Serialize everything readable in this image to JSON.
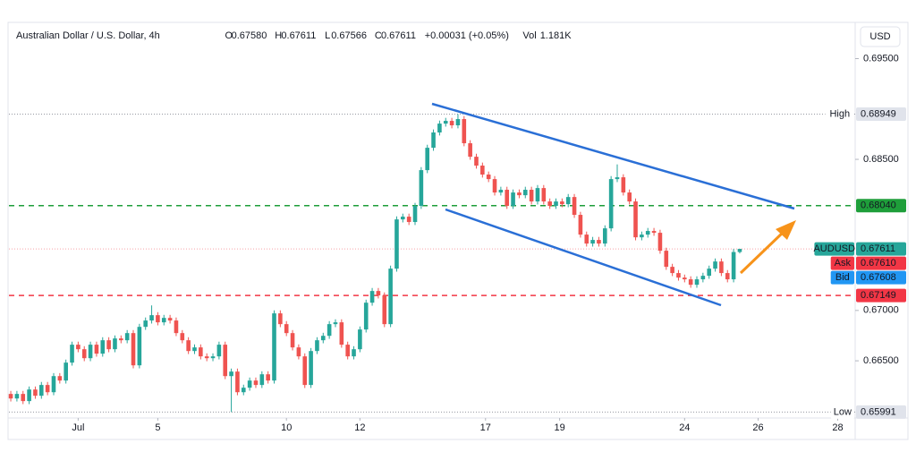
{
  "chart_data": {
    "type": "candlestick",
    "header": {
      "title": "Australian Dollar / U.S. Dollar, 4h",
      "fields": [
        {
          "key": "O",
          "text": "0.67580"
        },
        {
          "key": "H",
          "text": "0.67611"
        },
        {
          "key": "L",
          "text": "0.67566"
        },
        {
          "key": "C",
          "text": "0.67611"
        },
        {
          "key": "",
          "text": "+0.00031 (+0.05%)"
        },
        {
          "key": "Vol",
          "text": "1.181K"
        }
      ]
    },
    "currency_button": "USD",
    "up_color": "#26a69a",
    "down_color": "#ef5350",
    "grid": false,
    "ylim": [
      0.6595,
      0.6986
    ],
    "yticks": [
      {
        "value": 0.695,
        "label": "0.69500"
      },
      {
        "value": 0.685,
        "label": "0.68500"
      },
      {
        "value": 0.67,
        "label": "0.67000"
      },
      {
        "value": 0.665,
        "label": "0.66500"
      }
    ],
    "xlim": [
      -0.3,
      137.7
    ],
    "xticks": [
      {
        "value": 11,
        "label": "Jul"
      },
      {
        "value": 24,
        "label": "5"
      },
      {
        "value": 45,
        "label": "10"
      },
      {
        "value": 57,
        "label": "12"
      },
      {
        "value": 77.5,
        "label": "17"
      },
      {
        "value": 89.6,
        "label": "19"
      },
      {
        "value": 110,
        "label": "24"
      },
      {
        "value": 122,
        "label": "26"
      },
      {
        "value": 135,
        "label": "28"
      }
    ],
    "open": [
      0.66171,
      0.66126,
      0.66171,
      0.661,
      0.66215,
      0.66153,
      0.6626,
      0.66188,
      0.66348,
      0.66304,
      0.66482,
      0.6666,
      0.66615,
      0.66526,
      0.6666,
      0.66571,
      0.66704,
      0.66615,
      0.66722,
      0.66704,
      0.66775,
      0.66455,
      0.66837,
      0.669,
      0.66953,
      0.66882,
      0.66926,
      0.669,
      0.66775,
      0.66704,
      0.66597,
      0.66633,
      0.66544,
      0.66526,
      0.66544,
      0.6666,
      0.66348,
      0.66393,
      0.66188,
      0.66233,
      0.66304,
      0.6626,
      0.66366,
      0.66304,
      0.66971,
      0.66864,
      0.66775,
      0.66633,
      0.66544,
      0.6626,
      0.66597,
      0.66704,
      0.66748,
      0.66864,
      0.66882,
      0.6666,
      0.66544,
      0.66615,
      0.66811,
      0.67077,
      0.67193,
      0.67149,
      0.66864,
      0.67415,
      0.67904,
      0.67931,
      0.67878,
      0.68038,
      0.68393,
      0.68615,
      0.68767,
      0.68855,
      0.68882,
      0.68838,
      0.689,
      0.6866,
      0.68526,
      0.68438,
      0.68349,
      0.68304,
      0.68171,
      0.68198,
      0.68038,
      0.68171,
      0.68144,
      0.68198,
      0.68082,
      0.68215,
      0.68082,
      0.68038,
      0.68082,
      0.68055,
      0.68126,
      0.67949,
      0.67753,
      0.67664,
      0.677,
      0.67664,
      0.67815,
      0.68304,
      0.68322,
      0.68171,
      0.68082,
      0.67726,
      0.67753,
      0.67789,
      0.67771,
      0.67593,
      0.67433,
      0.67371,
      0.67326,
      0.67309,
      0.67255,
      0.67309,
      0.67344,
      0.67415,
      0.67486,
      0.67371,
      0.67309,
      0.6758
    ],
    "high": [
      0.66201,
      0.66201,
      0.66201,
      0.66245,
      0.66245,
      0.6629,
      0.6629,
      0.66378,
      0.66378,
      0.66512,
      0.6669,
      0.6669,
      0.66645,
      0.6669,
      0.6669,
      0.66734,
      0.66734,
      0.66752,
      0.66752,
      0.66805,
      0.66805,
      0.66867,
      0.6693,
      0.6705,
      0.66983,
      0.66956,
      0.66956,
      0.6693,
      0.66805,
      0.66734,
      0.66663,
      0.66663,
      0.66574,
      0.66574,
      0.6669,
      0.6669,
      0.66423,
      0.66423,
      0.66263,
      0.66334,
      0.66334,
      0.66396,
      0.66396,
      0.67001,
      0.67001,
      0.66894,
      0.66805,
      0.66663,
      0.66574,
      0.66627,
      0.66734,
      0.66778,
      0.66894,
      0.66912,
      0.66912,
      0.6669,
      0.66645,
      0.66841,
      0.67107,
      0.67223,
      0.67223,
      0.67179,
      0.67445,
      0.67934,
      0.67961,
      0.67961,
      0.68068,
      0.68423,
      0.68645,
      0.68797,
      0.68885,
      0.68912,
      0.68912,
      0.68949,
      0.6893,
      0.6869,
      0.68556,
      0.68468,
      0.68379,
      0.68334,
      0.68228,
      0.68228,
      0.68201,
      0.68201,
      0.68228,
      0.68228,
      0.68245,
      0.68245,
      0.68112,
      0.68112,
      0.68112,
      0.68156,
      0.68156,
      0.67979,
      0.67783,
      0.6773,
      0.6773,
      0.67845,
      0.68334,
      0.6845,
      0.68352,
      0.68201,
      0.68112,
      0.67783,
      0.67819,
      0.67819,
      0.67801,
      0.67623,
      0.67463,
      0.67401,
      0.67356,
      0.67339,
      0.67339,
      0.67374,
      0.67445,
      0.67516,
      0.67516,
      0.67401,
      0.6761,
      0.67611
    ],
    "low": [
      0.66096,
      0.66096,
      0.6607,
      0.6607,
      0.66123,
      0.66123,
      0.66158,
      0.66158,
      0.66274,
      0.66274,
      0.66452,
      0.66585,
      0.66496,
      0.66496,
      0.66541,
      0.66541,
      0.66585,
      0.66585,
      0.66674,
      0.66674,
      0.66425,
      0.66425,
      0.66807,
      0.6687,
      0.66852,
      0.66852,
      0.6687,
      0.66745,
      0.66674,
      0.66567,
      0.66567,
      0.66514,
      0.66496,
      0.66496,
      0.66514,
      0.66318,
      0.65991,
      0.66158,
      0.66158,
      0.66203,
      0.6623,
      0.6623,
      0.66274,
      0.66274,
      0.66834,
      0.66745,
      0.66603,
      0.66514,
      0.6623,
      0.6623,
      0.66567,
      0.66674,
      0.66718,
      0.66834,
      0.6663,
      0.66514,
      0.66514,
      0.66585,
      0.66781,
      0.67047,
      0.67119,
      0.66834,
      0.66834,
      0.67385,
      0.67874,
      0.67848,
      0.67848,
      0.68008,
      0.68363,
      0.68585,
      0.68737,
      0.68825,
      0.68808,
      0.68808,
      0.6863,
      0.68496,
      0.68408,
      0.68319,
      0.68274,
      0.68141,
      0.68141,
      0.68008,
      0.68008,
      0.68114,
      0.68114,
      0.68052,
      0.68052,
      0.68052,
      0.68008,
      0.68008,
      0.68025,
      0.68025,
      0.67919,
      0.67723,
      0.67634,
      0.67634,
      0.67634,
      0.67634,
      0.67785,
      0.68274,
      0.68141,
      0.68052,
      0.67696,
      0.67696,
      0.67723,
      0.67741,
      0.67563,
      0.67403,
      0.67341,
      0.67296,
      0.67279,
      0.67225,
      0.67225,
      0.67279,
      0.67314,
      0.67385,
      0.67341,
      0.67279,
      0.67279,
      0.67566
    ],
    "close": [
      0.66126,
      0.66171,
      0.661,
      0.66215,
      0.66153,
      0.6626,
      0.66188,
      0.66348,
      0.66304,
      0.66482,
      0.6666,
      0.66615,
      0.66526,
      0.6666,
      0.66571,
      0.66704,
      0.66615,
      0.66722,
      0.66704,
      0.66775,
      0.66455,
      0.66837,
      0.669,
      0.66953,
      0.66882,
      0.66926,
      0.669,
      0.66775,
      0.66704,
      0.66597,
      0.66633,
      0.66544,
      0.66526,
      0.66544,
      0.6666,
      0.66348,
      0.66393,
      0.66188,
      0.66233,
      0.66304,
      0.6626,
      0.66366,
      0.66304,
      0.66971,
      0.66864,
      0.66775,
      0.66633,
      0.66544,
      0.6626,
      0.66597,
      0.66704,
      0.66748,
      0.66864,
      0.66882,
      0.6666,
      0.66544,
      0.66615,
      0.66811,
      0.67077,
      0.67193,
      0.67149,
      0.66864,
      0.67415,
      0.67904,
      0.67931,
      0.67878,
      0.68038,
      0.68393,
      0.68615,
      0.68767,
      0.68855,
      0.68882,
      0.68838,
      0.689,
      0.6866,
      0.68526,
      0.68438,
      0.68349,
      0.68304,
      0.68171,
      0.68198,
      0.68038,
      0.68171,
      0.68144,
      0.68198,
      0.68082,
      0.68215,
      0.68082,
      0.68038,
      0.68082,
      0.68055,
      0.68126,
      0.67949,
      0.67753,
      0.67664,
      0.677,
      0.67664,
      0.67815,
      0.68304,
      0.68322,
      0.68171,
      0.68082,
      0.67726,
      0.67753,
      0.67789,
      0.67771,
      0.67593,
      0.67433,
      0.67371,
      0.67326,
      0.67309,
      0.67255,
      0.67309,
      0.67344,
      0.67415,
      0.67486,
      0.67371,
      0.67309,
      0.6758,
      0.67611
    ],
    "levels": [
      {
        "name": "High",
        "value": 0.68949,
        "label": "0.68949",
        "color": "#e0e3eb",
        "text_color": "#131722",
        "line": "dotted-gray"
      },
      {
        "value": 0.6804,
        "label": "0.68040",
        "color": "#1e9e3a",
        "text_color": "#ffffff",
        "line": "dashed-green"
      },
      {
        "name": "AUDUSD",
        "value": 0.67611,
        "label": "0.67611",
        "color": "#26a69a",
        "text_color": "#ffffff",
        "line": "dotted-red"
      },
      {
        "name": "Ask",
        "value": 0.6761,
        "label": "0.67610",
        "color": "#f23645",
        "text_color": "#ffffff",
        "line": "none"
      },
      {
        "name": "Bid",
        "value": 0.67608,
        "label": "0.67608",
        "color": "#2196f3",
        "text_color": "#ffffff",
        "line": "none"
      },
      {
        "value": 0.67149,
        "label": "0.67149",
        "color": "#f23645",
        "text_color": "#ffffff",
        "line": "dashed-red"
      },
      {
        "name": "Low",
        "value": 0.65991,
        "label": "0.65991",
        "color": "#e0e3eb",
        "text_color": "#131722",
        "line": "dotted-gray"
      }
    ]
  }
}
